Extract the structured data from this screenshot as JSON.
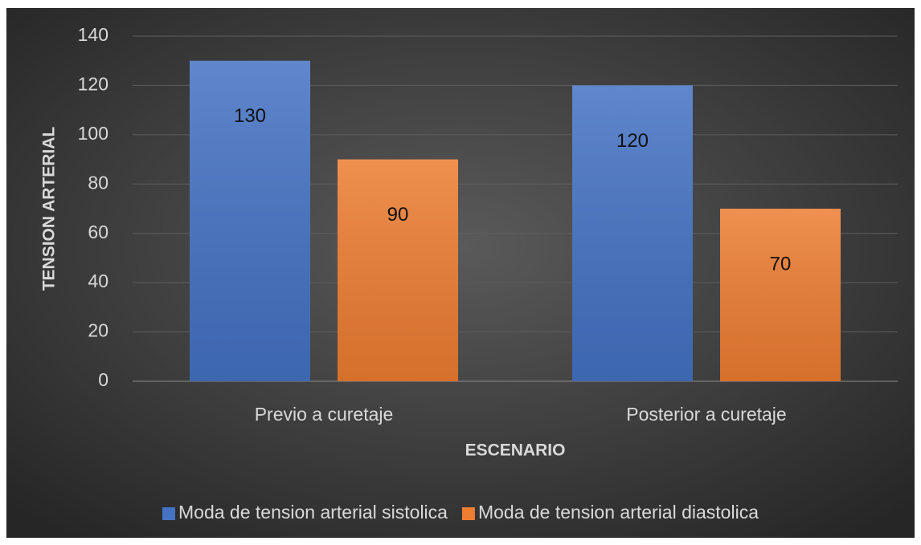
{
  "chart_data": {
    "type": "bar",
    "x_label": "ESCENARIO",
    "y_label": "TENSION ARTERIAL",
    "categories": [
      "Previo a curetaje",
      "Posterior a curetaje"
    ],
    "series": [
      {
        "name": "Moda de tension arterial sistolica",
        "color": "#4472c4",
        "values": [
          130,
          120
        ]
      },
      {
        "name": "Moda de tension arterial diastolica",
        "color": "#ed7d31",
        "values": [
          90,
          70
        ]
      }
    ],
    "ylim": [
      0,
      140
    ],
    "yticks": [
      0,
      20,
      40,
      60,
      80,
      100,
      120,
      140
    ],
    "grid": true,
    "legend": "bottom"
  }
}
